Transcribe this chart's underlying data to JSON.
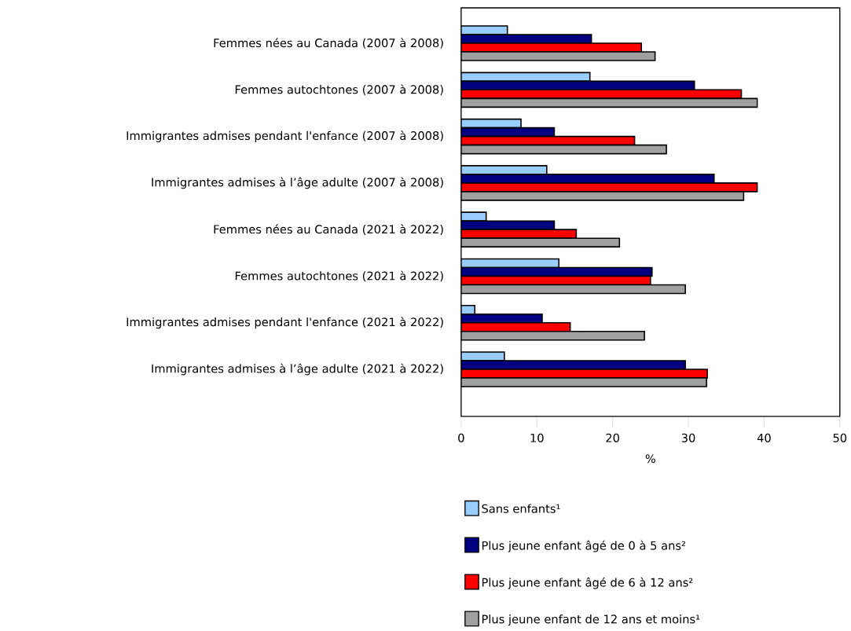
{
  "chart_data": {
    "type": "bar",
    "orientation": "horizontal",
    "xlabel": "%",
    "categories": [
      "Femmes nées au Canada (2007 à 2008)",
      "Femmes autochtones (2007 à 2008)",
      "Immigrantes admises pendant l'enfance (2007 à 2008)",
      "Immigrantes admises à l’âge adulte (2007 à 2008)",
      "Femmes nées au Canada (2021 à 2022)",
      "Femmes autochtones (2021 à 2022)",
      "Immigrantes admises pendant l'enfance (2021 à 2022)",
      "Immigrantes admises à l’âge adulte (2021 à 2022)"
    ],
    "series": [
      {
        "name": "Sans enfants¹",
        "color": "#99ccff",
        "values": [
          6.1,
          17.0,
          7.9,
          11.3,
          3.3,
          12.9,
          1.8,
          5.7
        ]
      },
      {
        "name": "Plus jeune enfant âgé de 0 à 5 ans²",
        "color": "#000080",
        "values": [
          17.2,
          30.8,
          12.3,
          33.4,
          12.3,
          25.2,
          10.7,
          29.6
        ]
      },
      {
        "name": "Plus jeune enfant âgé de 6 à 12 ans²",
        "color": "#ff0000",
        "values": [
          23.8,
          37.0,
          22.9,
          39.1,
          15.2,
          25.0,
          14.4,
          32.5
        ]
      },
      {
        "name": "Plus jeune enfant de 12 ans et moins¹",
        "color": "#a0a0a0",
        "values": [
          25.6,
          39.1,
          27.1,
          37.3,
          20.9,
          29.6,
          24.2,
          32.4
        ]
      }
    ],
    "xlim": [
      0,
      50
    ],
    "xticks": [
      0,
      10,
      20,
      30,
      40,
      50
    ],
    "grid": false,
    "legend": "bottom"
  }
}
